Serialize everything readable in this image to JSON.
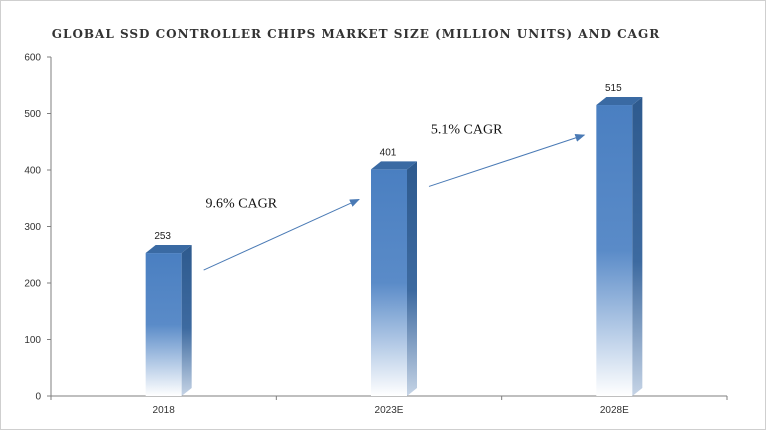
{
  "chart_data": {
    "type": "bar",
    "title": "GLOBAL SSD CONTROLLER CHIPS MARKET SIZE (MILLION UNITS) AND CAGR",
    "categories": [
      "2018",
      "2023E",
      "2028E"
    ],
    "values": [
      253,
      401,
      515
    ],
    "data_labels": [
      "253",
      "401",
      "515"
    ],
    "ylim": [
      0,
      600
    ],
    "yticks": [
      0,
      100,
      200,
      300,
      400,
      500,
      600
    ],
    "grid": false,
    "legend": "none",
    "annotations": [
      {
        "text": "9.6% CAGR",
        "from_category": 0,
        "to_category": 1
      },
      {
        "text": "5.1% CAGR",
        "from_category": 1,
        "to_category": 2
      }
    ],
    "colors": {
      "bar_front": "#4a7fc1",
      "bar_side": "#2e5a8e",
      "bar_top": "#3a6aa3",
      "arrow": "#4a7ab5",
      "axis": "#7f7f7f"
    }
  }
}
